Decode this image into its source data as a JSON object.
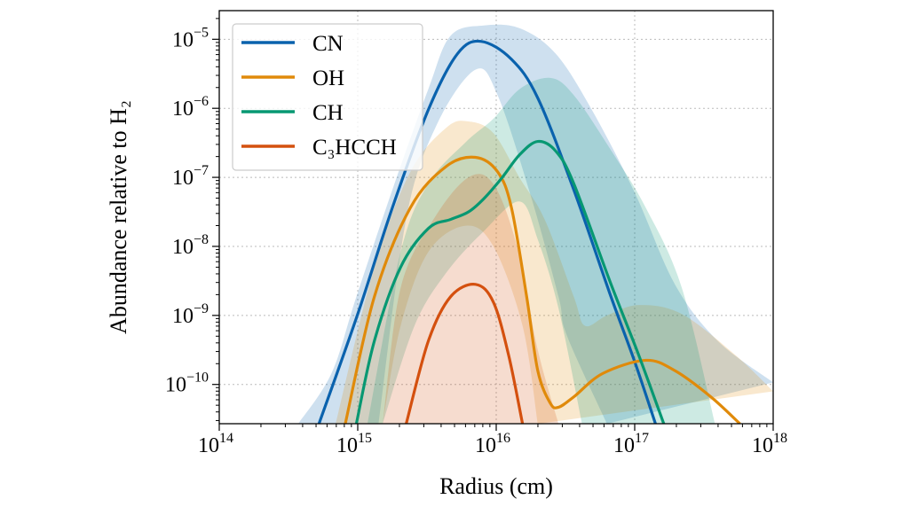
{
  "chart_data": {
    "type": "line",
    "title": "",
    "xlabel": "Radius (cm)",
    "ylabel": "Abundance relative to H₂",
    "x_scale": "log",
    "y_scale": "log",
    "xlim": [
      100000000000000.0,
      1e+18
    ],
    "ylim": [
      2.7e-11,
      2.6e-05
    ],
    "grid": true,
    "legend_position": "top-left",
    "x_ticks": [
      {
        "value": 100000000000000.0,
        "base": "10",
        "exp": "14"
      },
      {
        "value": 1000000000000000.0,
        "base": "10",
        "exp": "15"
      },
      {
        "value": 1e+16,
        "base": "10",
        "exp": "16"
      },
      {
        "value": 1e+17,
        "base": "10",
        "exp": "17"
      },
      {
        "value": 1e+18,
        "base": "10",
        "exp": "18"
      }
    ],
    "y_ticks": [
      {
        "value": 1e-10,
        "base": "10",
        "exp": "−10"
      },
      {
        "value": 1e-09,
        "base": "10",
        "exp": "−9"
      },
      {
        "value": 1e-08,
        "base": "10",
        "exp": "−8"
      },
      {
        "value": 1e-07,
        "base": "10",
        "exp": "−7"
      },
      {
        "value": 1e-06,
        "base": "10",
        "exp": "−6"
      },
      {
        "value": 1e-05,
        "base": "10",
        "exp": "−5"
      }
    ],
    "note_units": "points given as [log10(radius cm), log10(abundance)]",
    "series": [
      {
        "name": "CN",
        "color": "#0a62ad",
        "line": [
          [
            14.72,
            -10.57
          ],
          [
            15.0,
            -8.98
          ],
          [
            15.25,
            -7.44
          ],
          [
            15.51,
            -6.02
          ],
          [
            15.72,
            -5.21
          ],
          [
            15.89,
            -5.03
          ],
          [
            16.11,
            -5.29
          ],
          [
            16.3,
            -5.85
          ],
          [
            16.56,
            -7.18
          ],
          [
            16.82,
            -8.68
          ],
          [
            17.0,
            -9.67
          ],
          [
            17.15,
            -10.57
          ]
        ],
        "band_upper": [
          [
            14.57,
            -10.57
          ],
          [
            14.81,
            -9.84
          ],
          [
            14.99,
            -8.73
          ],
          [
            15.25,
            -7.18
          ],
          [
            15.51,
            -5.72
          ],
          [
            15.67,
            -4.95
          ],
          [
            15.91,
            -4.8
          ],
          [
            16.17,
            -4.84
          ],
          [
            16.43,
            -5.21
          ],
          [
            16.69,
            -6.02
          ],
          [
            17.0,
            -7.22
          ],
          [
            17.29,
            -8.55
          ],
          [
            17.6,
            -9.37
          ],
          [
            18.0,
            -9.97
          ]
        ],
        "band_lower": [
          [
            15.15,
            -10.57
          ],
          [
            15.35,
            -7.6
          ],
          [
            15.57,
            -6.24
          ],
          [
            15.85,
            -5.44
          ],
          [
            16.01,
            -5.81
          ],
          [
            16.25,
            -7.27
          ],
          [
            16.45,
            -8.73
          ],
          [
            16.51,
            -9.29
          ],
          [
            16.8,
            -10.57
          ]
        ]
      },
      {
        "name": "OH",
        "color": "#e08a0a",
        "line": [
          [
            14.91,
            -10.57
          ],
          [
            15.12,
            -8.73
          ],
          [
            15.38,
            -7.44
          ],
          [
            15.64,
            -6.84
          ],
          [
            15.85,
            -6.71
          ],
          [
            16.01,
            -6.92
          ],
          [
            16.11,
            -7.44
          ],
          [
            16.22,
            -8.73
          ],
          [
            16.3,
            -9.8
          ],
          [
            16.39,
            -10.27
          ],
          [
            16.45,
            -10.33
          ],
          [
            16.56,
            -10.18
          ],
          [
            16.77,
            -9.84
          ],
          [
            17.08,
            -9.65
          ],
          [
            17.29,
            -9.8
          ],
          [
            17.55,
            -10.18
          ],
          [
            17.76,
            -10.57
          ]
        ],
        "band_upper": [
          [
            14.84,
            -10.57
          ],
          [
            15.12,
            -8.3
          ],
          [
            15.38,
            -6.92
          ],
          [
            15.64,
            -6.28
          ],
          [
            15.8,
            -6.19
          ],
          [
            15.98,
            -6.36
          ],
          [
            16.17,
            -7.01
          ],
          [
            16.35,
            -7.61
          ],
          [
            16.56,
            -8.73
          ],
          [
            16.64,
            -9.15
          ],
          [
            16.8,
            -9.0
          ],
          [
            17.03,
            -8.85
          ],
          [
            17.34,
            -8.98
          ],
          [
            17.73,
            -9.58
          ],
          [
            18.0,
            -10.1
          ]
        ],
        "band_lower": [
          [
            15.18,
            -10.57
          ],
          [
            15.31,
            -9.15
          ],
          [
            15.51,
            -8.08
          ],
          [
            15.78,
            -7.7
          ],
          [
            15.98,
            -8.0
          ],
          [
            16.19,
            -9.15
          ],
          [
            16.3,
            -10.57
          ]
        ]
      },
      {
        "name": "CH",
        "color": "#079872",
        "line": [
          [
            14.99,
            -10.57
          ],
          [
            15.12,
            -9.37
          ],
          [
            15.31,
            -8.3
          ],
          [
            15.51,
            -7.74
          ],
          [
            15.67,
            -7.61
          ],
          [
            15.8,
            -7.5
          ],
          [
            15.91,
            -7.31
          ],
          [
            16.04,
            -7.01
          ],
          [
            16.17,
            -6.67
          ],
          [
            16.3,
            -6.48
          ],
          [
            16.43,
            -6.62
          ],
          [
            16.56,
            -7.09
          ],
          [
            16.82,
            -8.5
          ],
          [
            17.03,
            -9.58
          ],
          [
            17.21,
            -10.57
          ]
        ],
        "band_upper": [
          [
            15.07,
            -10.57
          ],
          [
            15.31,
            -8.08
          ],
          [
            15.51,
            -7.09
          ],
          [
            15.78,
            -6.49
          ],
          [
            15.98,
            -6.15
          ],
          [
            16.17,
            -5.72
          ],
          [
            16.39,
            -5.56
          ],
          [
            16.56,
            -5.81
          ],
          [
            16.82,
            -6.58
          ],
          [
            17.08,
            -7.44
          ],
          [
            17.34,
            -8.6
          ],
          [
            17.58,
            -10.57
          ]
        ],
        "band_lower": [
          [
            15.18,
            -10.57
          ],
          [
            15.41,
            -9.15
          ],
          [
            15.64,
            -8.38
          ],
          [
            15.91,
            -7.78
          ],
          [
            16.17,
            -7.35
          ],
          [
            16.3,
            -7.9
          ],
          [
            16.45,
            -8.9
          ],
          [
            16.62,
            -10.57
          ]
        ]
      },
      {
        "name": "C₃HCCH",
        "color": "#d4500f",
        "line": [
          [
            15.35,
            -10.57
          ],
          [
            15.51,
            -9.37
          ],
          [
            15.67,
            -8.73
          ],
          [
            15.85,
            -8.55
          ],
          [
            15.98,
            -8.81
          ],
          [
            16.09,
            -9.58
          ],
          [
            16.19,
            -10.57
          ]
        ],
        "band_upper": [
          [
            15.18,
            -10.57
          ],
          [
            15.31,
            -8.6
          ],
          [
            15.55,
            -7.6
          ],
          [
            15.8,
            -7.0
          ],
          [
            15.98,
            -7.1
          ],
          [
            16.15,
            -8.0
          ],
          [
            16.3,
            -9.5
          ],
          [
            16.45,
            -10.57
          ]
        ],
        "band_lower": [
          [
            15.18,
            -10.57
          ],
          [
            16.45,
            -10.57
          ]
        ]
      }
    ]
  }
}
